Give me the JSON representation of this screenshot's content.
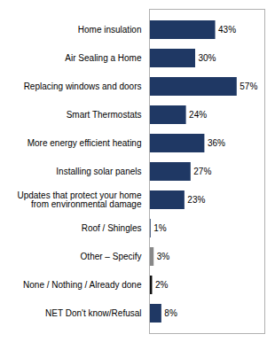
{
  "chart_data": {
    "type": "bar",
    "orientation": "horizontal",
    "categories": [
      "NET Don't know/Refusal",
      "None / Nothing / Already done",
      "Other – Specify",
      "Roof / Shingles",
      "Updates that protect your home\nfrom environmental damage",
      "Installing solar panels",
      "More energy efficient heating",
      "Smart Thermostats",
      "Replacing windows and doors",
      "Air Sealing a Home",
      "Home insulation"
    ],
    "values": [
      8,
      2,
      3,
      1,
      23,
      27,
      36,
      24,
      57,
      30,
      43
    ],
    "value_labels": [
      "8%",
      "2%",
      "3%",
      "1%",
      "23%",
      "27%",
      "36%",
      "24%",
      "57%",
      "30%",
      "43%"
    ],
    "data_labels": true,
    "colors": [
      "#1f3864",
      "#111111",
      "#888888",
      "#1f3864",
      "#1f3864",
      "#1f3864",
      "#1f3864",
      "#1f3864",
      "#1f3864",
      "#1f3864",
      "#1f3864"
    ],
    "xlim": [
      0,
      75
    ],
    "tick_labels": "y",
    "grid": false
  }
}
